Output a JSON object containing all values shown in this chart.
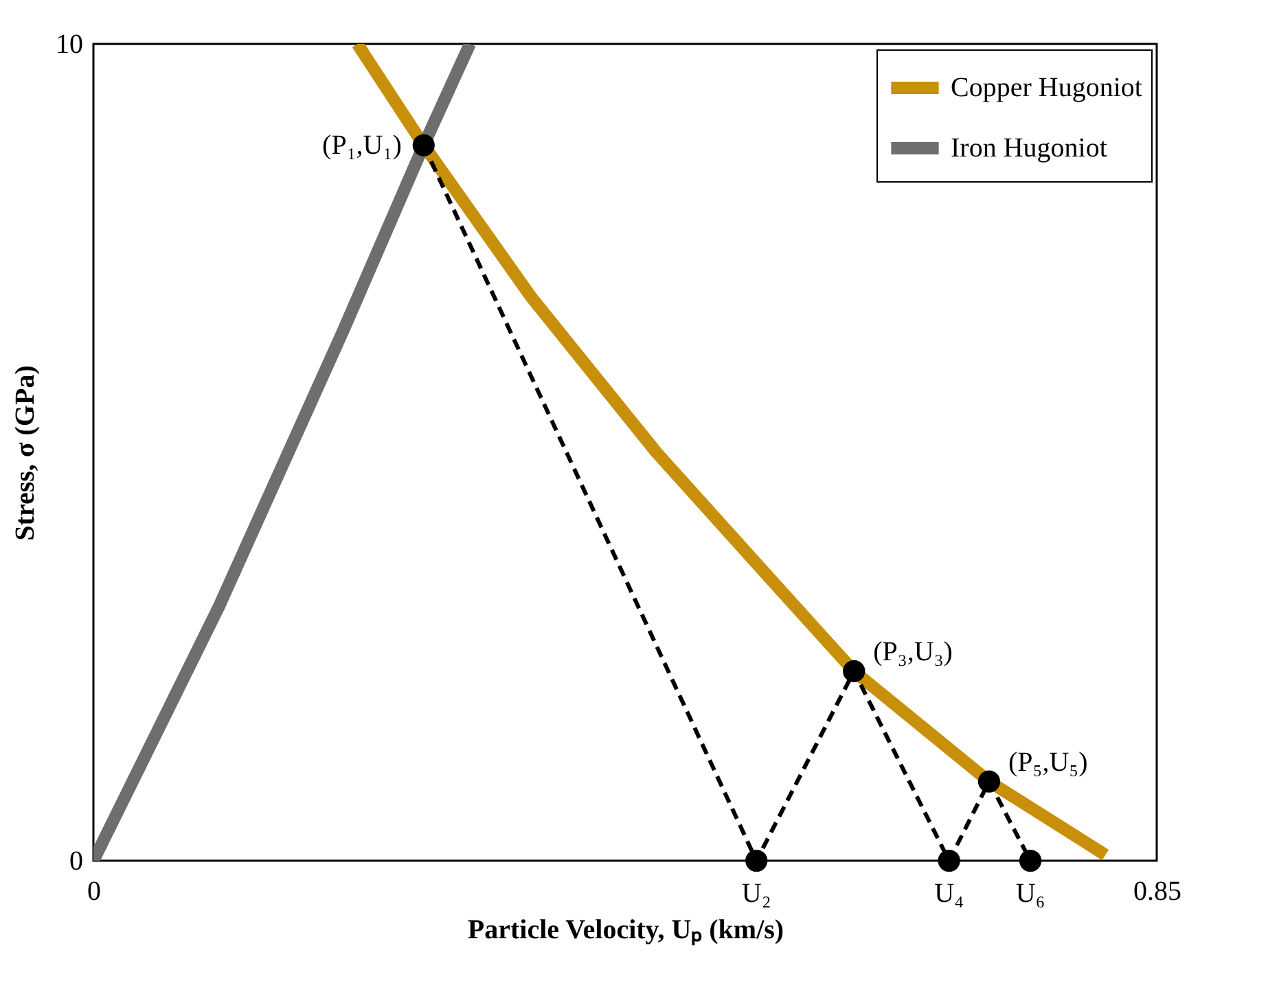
{
  "chart_data": {
    "type": "line",
    "xlabel": "Particle Velocity, Uₚ (km/s)",
    "ylabel": "Stress, σ (GPa)",
    "xlim": [
      0,
      0.85
    ],
    "xticks": [
      0,
      0.85
    ],
    "ylim": [
      0,
      10
    ],
    "yticks": [
      0,
      10
    ],
    "legend": "top right",
    "series": [
      {
        "name": "Copper Hugoniot",
        "color": "#c8900a",
        "x": [
          0.211,
          0.264,
          0.35,
          0.45,
          0.55,
          0.608,
          0.716,
          0.809
        ],
        "values": [
          10,
          8.76,
          6.9,
          5.0,
          3.3,
          2.32,
          0.97,
          0.07
        ]
      },
      {
        "name": "Iron Hugoniot",
        "color": "#6e6e6e",
        "x": [
          0,
          0.1,
          0.2,
          0.264,
          0.301
        ],
        "values": [
          0,
          3.1,
          6.5,
          8.76,
          10
        ]
      },
      {
        "color": "#000000",
        "line_style": "dashed",
        "marker": "circle",
        "x": [
          0.264,
          0.53,
          0.608,
          0.684,
          0.716,
          0.749
        ],
        "values": [
          8.76,
          0,
          2.32,
          0,
          0.97,
          0
        ]
      }
    ],
    "annotations": [
      {
        "text": "(P₁,U₁)",
        "x": 0.264,
        "y": 8.76
      },
      {
        "text": "U₂",
        "x": 0.53,
        "y": 0
      },
      {
        "text": "(P₃,U₃)",
        "x": 0.608,
        "y": 2.32
      },
      {
        "text": "U₄",
        "x": 0.684,
        "y": 0
      },
      {
        "text": "(P₅,U₅)",
        "x": 0.716,
        "y": 0.97
      },
      {
        "text": "U₆",
        "x": 0.749,
        "y": 0
      }
    ]
  }
}
